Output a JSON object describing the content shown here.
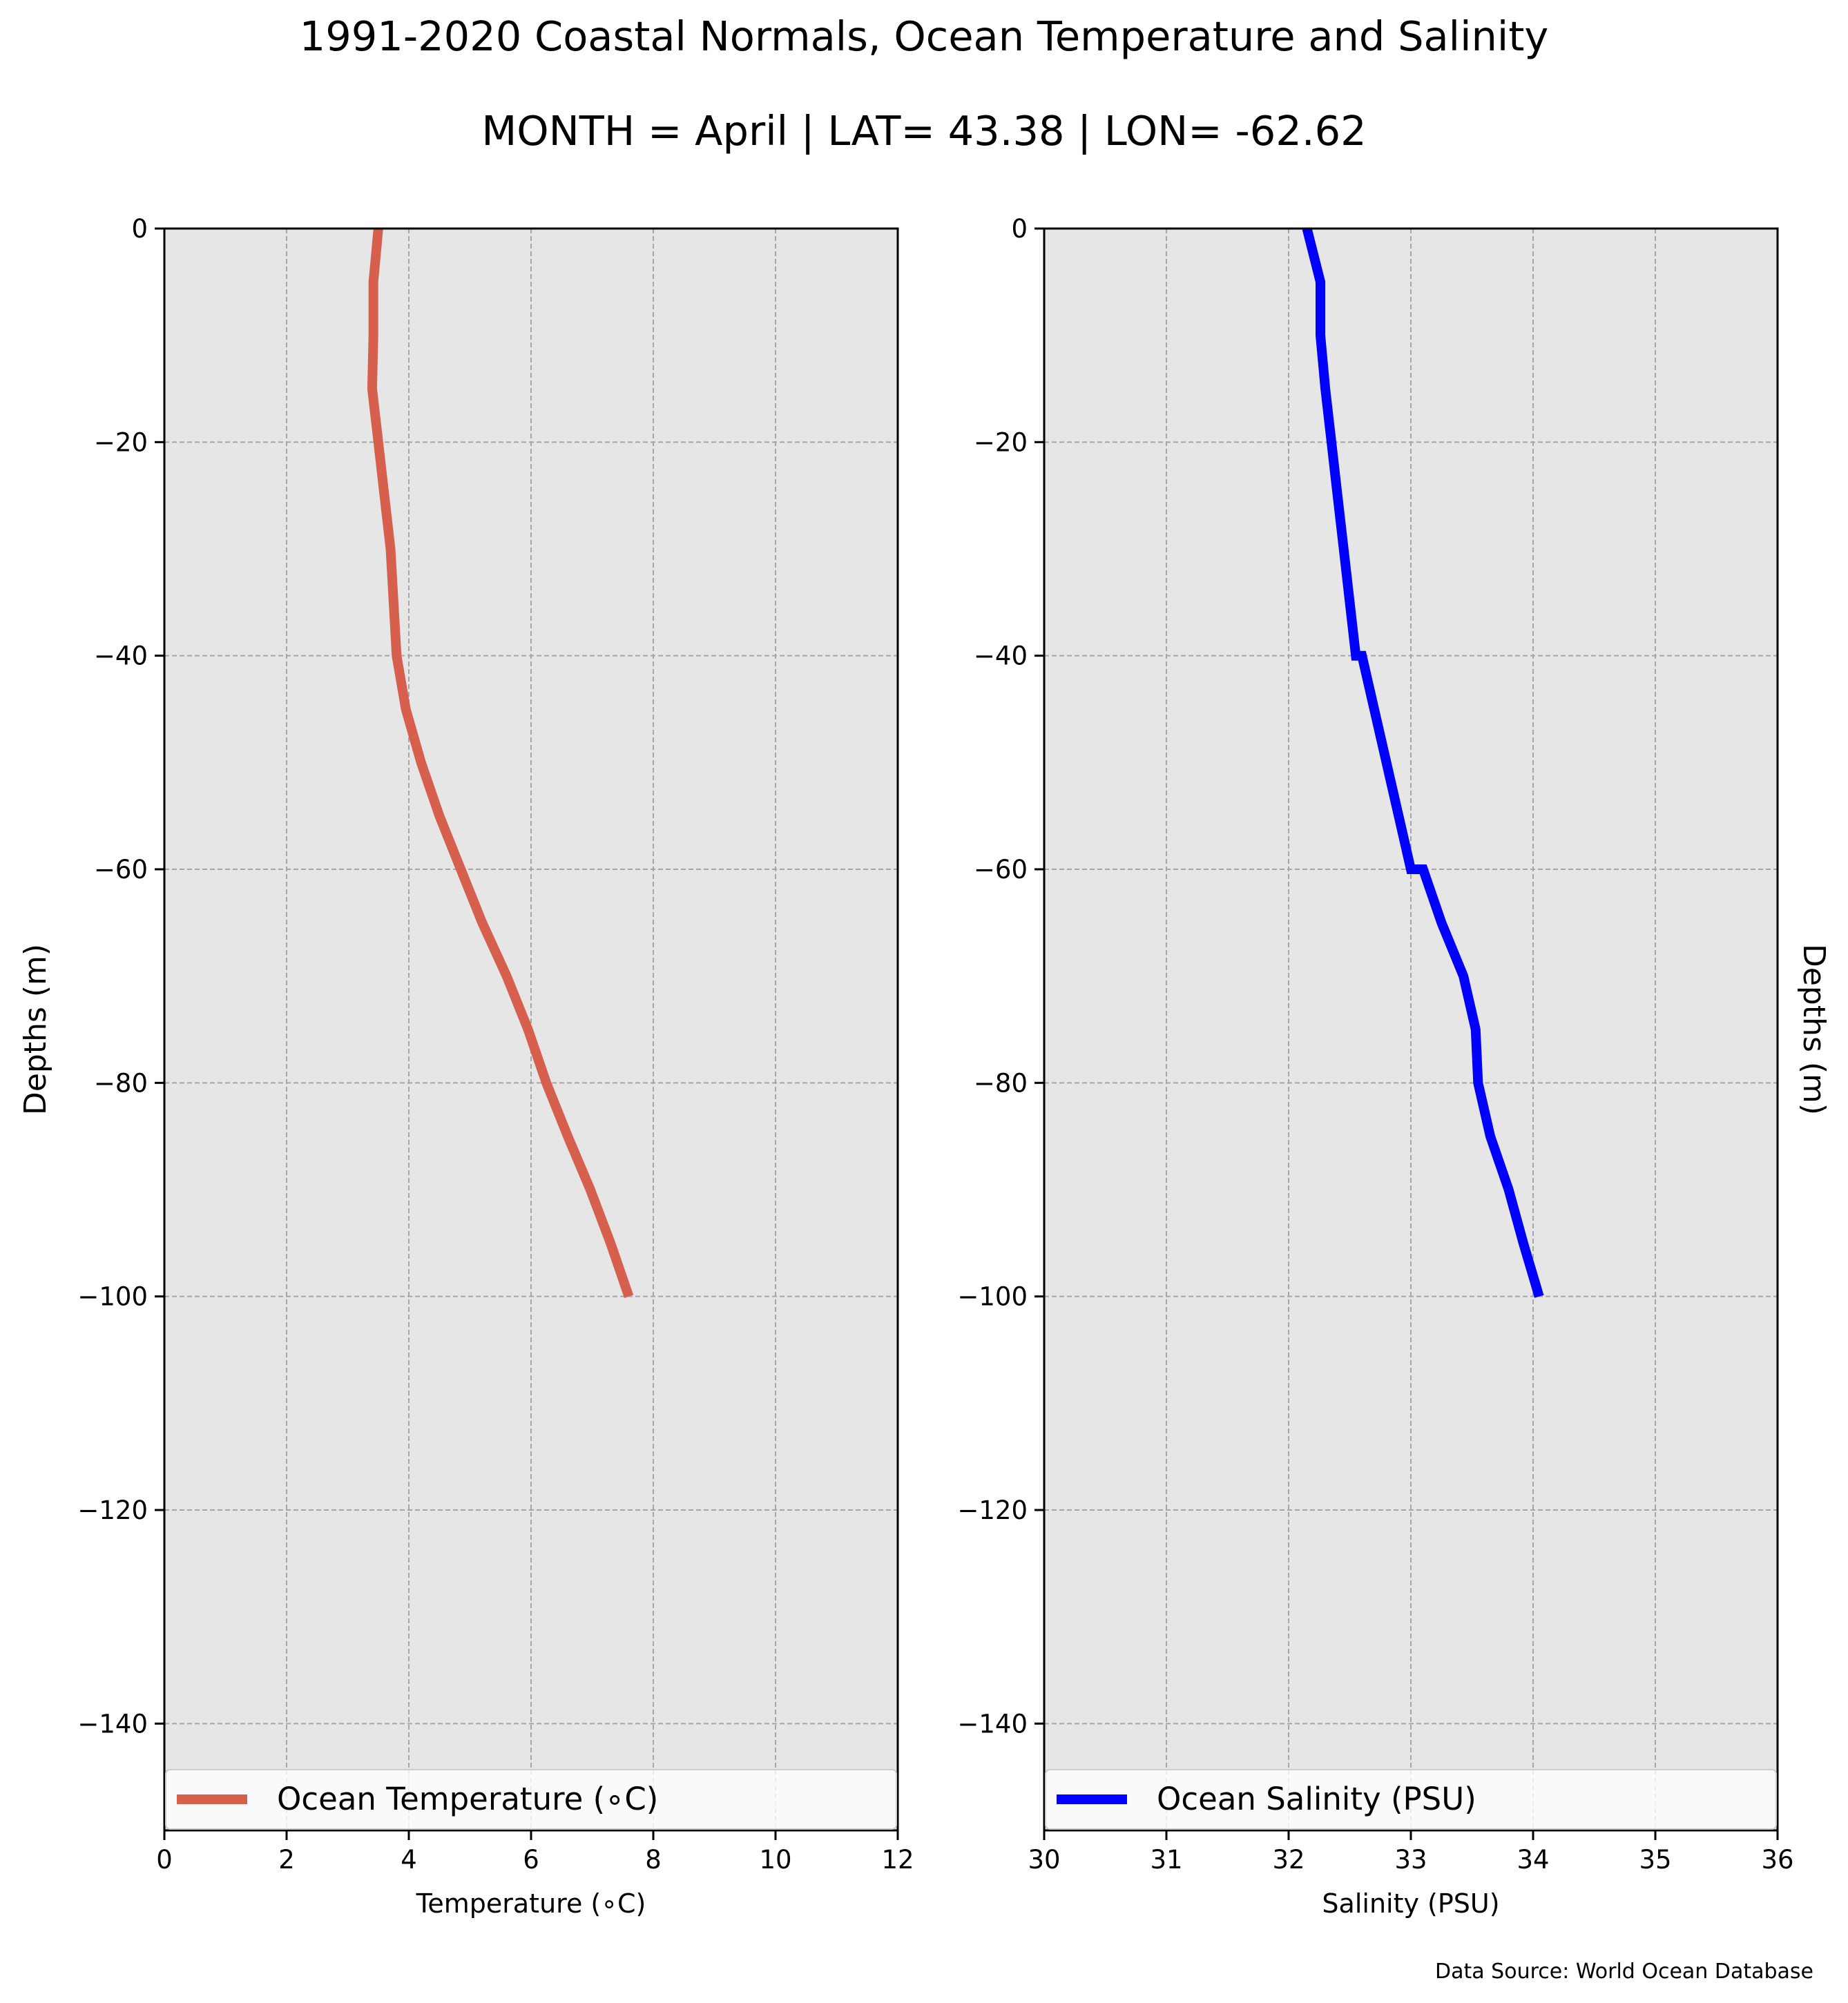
{
  "title_lines": [
    "1991-2020 Coastal Normals, Ocean Temperature and Salinity",
    "MONTH = April | LAT= 43.38 | LON= -62.62"
  ],
  "source_note": "Data Source: World Ocean Database",
  "chart_data": [
    {
      "type": "line",
      "xlabel": "Temperature (∘C)",
      "ylabel": "Depths (m)",
      "ylabel_side": "left",
      "xlim": [
        0,
        12
      ],
      "ylim": [
        -150,
        0
      ],
      "xticks": [
        0,
        2,
        4,
        6,
        8,
        10,
        12
      ],
      "yticks": [
        0,
        -20,
        -40,
        -60,
        -80,
        -100,
        -120,
        -140
      ],
      "ytick_labels": [
        "0",
        "−20",
        "−40",
        "−60",
        "−80",
        "−100",
        "−120",
        "−140"
      ],
      "grid": true,
      "background": "#e6e6e6",
      "legend_position": "bottom",
      "series": [
        {
          "name": "Ocean Temperature (∘C)",
          "color": "#d65f4d",
          "x": [
            3.5,
            3.42,
            3.42,
            3.4,
            3.5,
            3.6,
            3.7,
            3.8,
            3.95,
            4.2,
            4.5,
            4.85,
            5.2,
            5.6,
            5.95,
            6.25,
            6.6,
            6.97,
            7.3,
            7.6
          ],
          "y": [
            0,
            -5,
            -10,
            -15,
            -20,
            -25,
            -30,
            -40,
            -45,
            -50,
            -55,
            -60,
            -65,
            -70,
            -75,
            -80,
            -85,
            -90,
            -95,
            -100
          ]
        }
      ]
    },
    {
      "type": "line",
      "xlabel": "Salinity (PSU)",
      "ylabel": "Depths (m)",
      "ylabel_side": "right",
      "xlim": [
        30,
        36
      ],
      "ylim": [
        -150,
        0
      ],
      "xticks": [
        30,
        31,
        32,
        33,
        34,
        35,
        36
      ],
      "yticks": [
        0,
        -20,
        -40,
        -60,
        -80,
        -100,
        -120,
        -140
      ],
      "ytick_labels": [
        "0",
        "−20",
        "−40",
        "−60",
        "−80",
        "−100",
        "−120",
        "−140"
      ],
      "grid": true,
      "background": "#e6e6e6",
      "legend_position": "bottom",
      "series": [
        {
          "name": "Ocean Salinity (PSU)",
          "color": "#0000ff",
          "x": [
            32.15,
            32.26,
            32.26,
            32.3,
            32.35,
            32.4,
            32.45,
            32.5,
            32.55,
            32.6,
            32.7,
            32.8,
            32.9,
            33.0,
            33.1,
            33.25,
            33.43,
            33.53,
            33.55,
            33.65,
            33.8,
            33.92,
            34.05
          ],
          "y": [
            0,
            -5,
            -10,
            -15,
            -20,
            -25,
            -30,
            -35,
            -40,
            -40,
            -45,
            -50,
            -55,
            -60,
            -60,
            -65,
            -70,
            -75,
            -80,
            -85,
            -90,
            -95,
            -100
          ]
        }
      ]
    }
  ]
}
